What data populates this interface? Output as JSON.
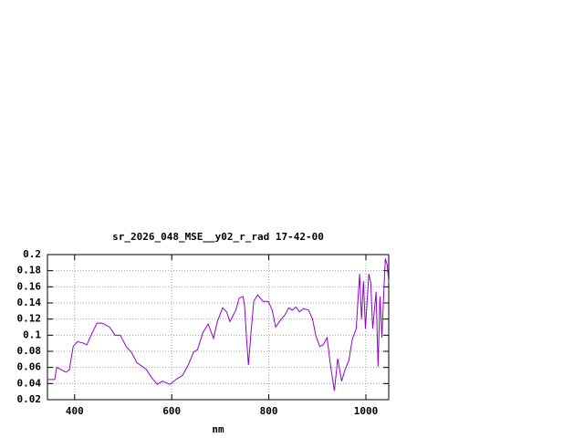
{
  "chart_data": {
    "type": "line",
    "title": "sr_2026_048_MSE__y02_r_rad 17-42-00",
    "x_label": "nm",
    "x": [
      344,
      359,
      363,
      370,
      382,
      389,
      397,
      406,
      419,
      425,
      434,
      446,
      457,
      472,
      483,
      494,
      506,
      517,
      528,
      540,
      547,
      558,
      570,
      581,
      596,
      611,
      622,
      634,
      645,
      653,
      664,
      675,
      686,
      694,
      705,
      713,
      720,
      732,
      739,
      747,
      750,
      754,
      758,
      764,
      769,
      777,
      788,
      799,
      807,
      814,
      822,
      833,
      841,
      848,
      856,
      863,
      871,
      882,
      890,
      897,
      905,
      912,
      920,
      927,
      935,
      942,
      950,
      957,
      965,
      972,
      980,
      987,
      991,
      995,
      999,
      1006,
      1010,
      1014,
      1021,
      1025,
      1029,
      1033,
      1036,
      1040,
      1044,
      1047
    ],
    "values": [
      0.045,
      0.045,
      0.06,
      0.058,
      0.054,
      0.057,
      0.086,
      0.092,
      0.09,
      0.088,
      0.1,
      0.115,
      0.115,
      0.11,
      0.1,
      0.1,
      0.086,
      0.079,
      0.066,
      0.061,
      0.058,
      0.048,
      0.039,
      0.043,
      0.039,
      0.046,
      0.05,
      0.063,
      0.079,
      0.082,
      0.103,
      0.114,
      0.096,
      0.117,
      0.134,
      0.129,
      0.117,
      0.131,
      0.146,
      0.148,
      0.137,
      0.097,
      0.063,
      0.108,
      0.142,
      0.15,
      0.142,
      0.142,
      0.131,
      0.11,
      0.117,
      0.125,
      0.134,
      0.131,
      0.135,
      0.129,
      0.133,
      0.131,
      0.12,
      0.099,
      0.086,
      0.088,
      0.097,
      0.063,
      0.031,
      0.071,
      0.043,
      0.057,
      0.069,
      0.095,
      0.108,
      0.176,
      0.12,
      0.167,
      0.108,
      0.176,
      0.165,
      0.108,
      0.154,
      0.061,
      0.148,
      0.097,
      0.142,
      0.195,
      0.187,
      0.165
    ],
    "color": "#9400d3",
    "xlim": [
      344,
      1047
    ],
    "xticks": [
      400,
      600,
      800,
      1000
    ],
    "ylim": [
      0.02,
      0.2
    ],
    "yticks": [
      0.02,
      0.04,
      0.06,
      0.08,
      0.1,
      0.12,
      0.14,
      0.16,
      0.18,
      0.2
    ],
    "grid": true
  }
}
